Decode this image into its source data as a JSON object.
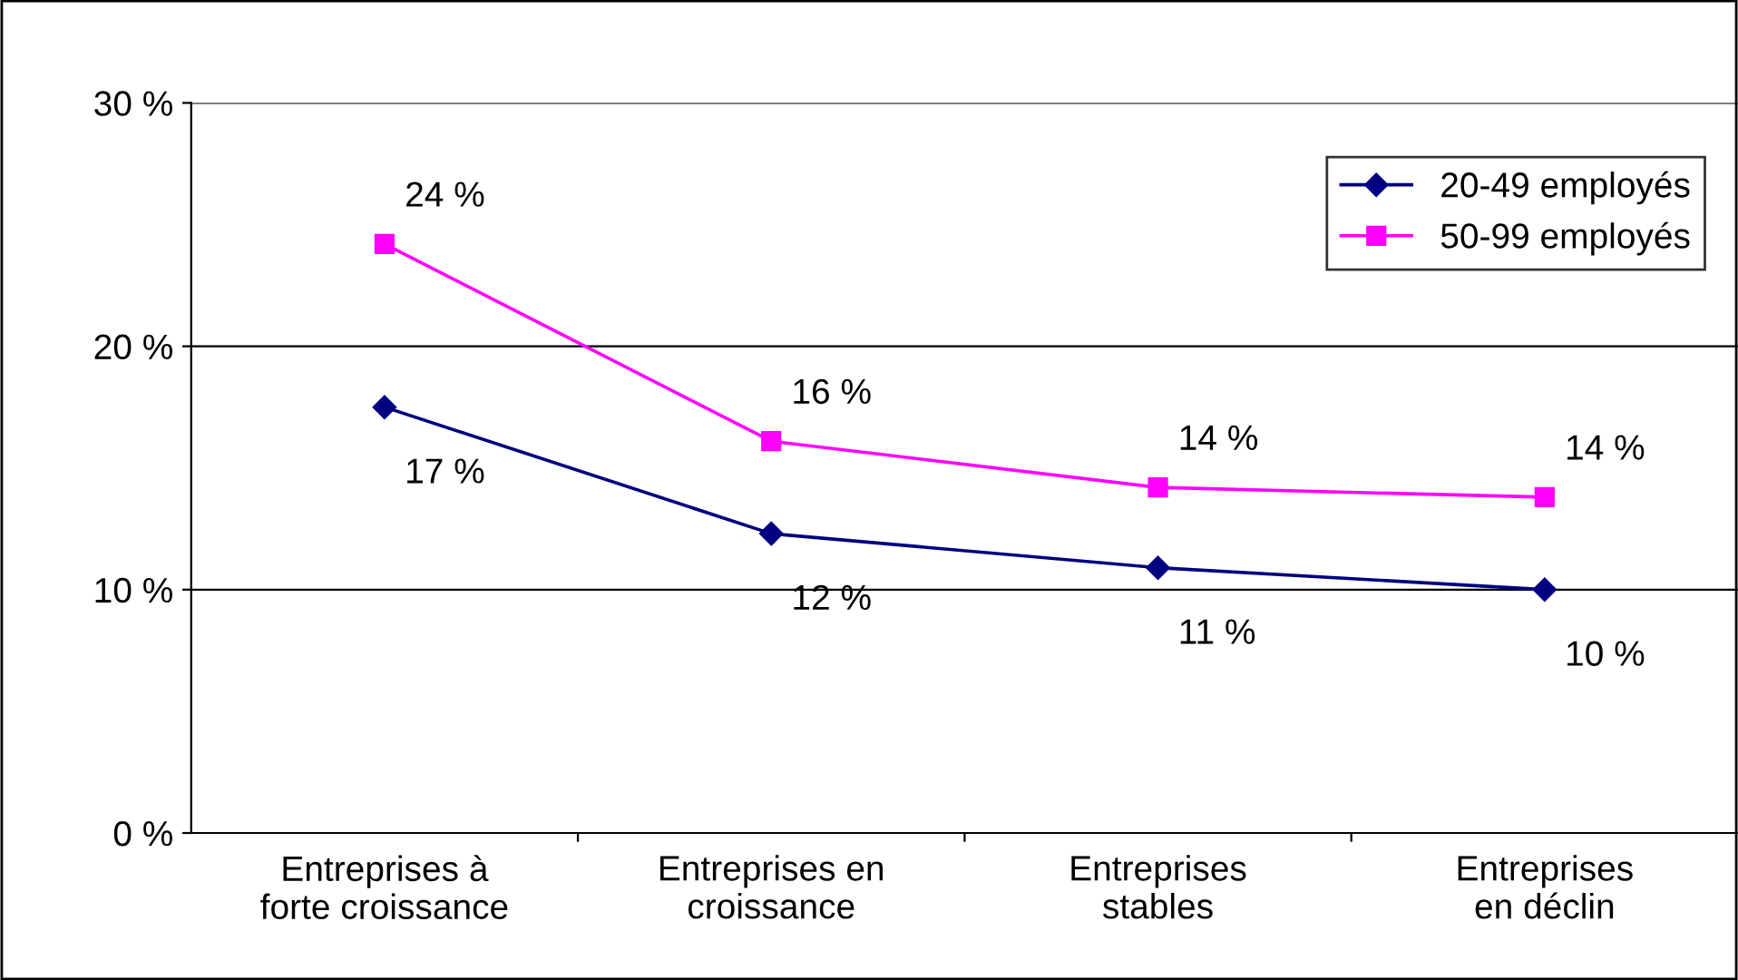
{
  "chart_data": {
    "type": "line",
    "categories": [
      "Entreprises à\nforte croissance",
      "Entreprises en\ncroissance",
      "Entreprises\nstables",
      "Entreprises\nen déclin"
    ],
    "series": [
      {
        "name": "20-49 employés",
        "color": "#000080",
        "marker": "diamond",
        "values": [
          17.5,
          12.3,
          10.9,
          10.0
        ],
        "value_labels": [
          "17 %",
          "12 %",
          "11 %",
          "10 %"
        ]
      },
      {
        "name": "50-99 employés",
        "color": "#ff00ff",
        "marker": "square",
        "values": [
          24.2,
          16.1,
          14.2,
          13.8
        ],
        "value_labels": [
          "24 %",
          "16 %",
          "14 %",
          "14 %"
        ]
      }
    ],
    "ylim": [
      0,
      30
    ],
    "yticks": [
      {
        "value": 0,
        "label": "0 %"
      },
      {
        "value": 10,
        "label": "10 %"
      },
      {
        "value": 20,
        "label": "20 %"
      },
      {
        "value": 30,
        "label": "30 %"
      }
    ],
    "grid": "y",
    "legend": "top right",
    "line_style": "solid"
  }
}
